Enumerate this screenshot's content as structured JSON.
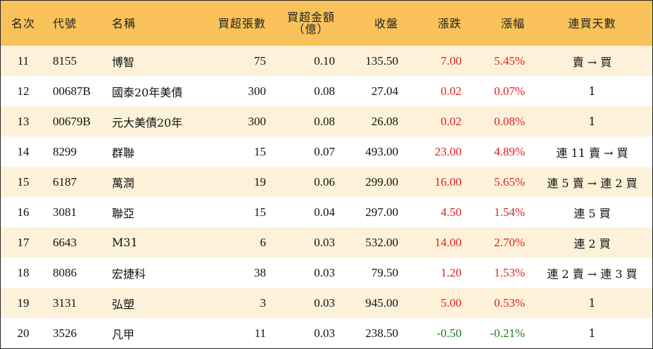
{
  "headers": {
    "rank": "名次",
    "code": "代號",
    "name": "名稱",
    "net_buy_lots": "買超張數",
    "net_buy_amount_line1": "買超金額",
    "net_buy_amount_line2": "（億）",
    "close": "收盤",
    "change": "漲跌",
    "change_pct": "漲幅",
    "consecutive_buy_days": "連買天數"
  },
  "colors": {
    "header_bg": "#f9c25a",
    "odd_row_bg": "#fdf2d9",
    "even_row_bg": "#ffffff",
    "up": "#e02020",
    "down": "#1f7a1f"
  },
  "rows": [
    {
      "rank": "11",
      "code": "8155",
      "name": "博智",
      "lots": "75",
      "amount": "0.10",
      "close": "135.50",
      "change": "7.00",
      "pct": "5.45%",
      "dir": "up",
      "streak": "賣 → 買"
    },
    {
      "rank": "12",
      "code": "00687B",
      "name": "國泰20年美債",
      "lots": "300",
      "amount": "0.08",
      "close": "27.04",
      "change": "0.02",
      "pct": "0.07%",
      "dir": "up",
      "streak": "1"
    },
    {
      "rank": "13",
      "code": "00679B",
      "name": "元大美債20年",
      "lots": "300",
      "amount": "0.08",
      "close": "26.08",
      "change": "0.02",
      "pct": "0.08%",
      "dir": "up",
      "streak": "1"
    },
    {
      "rank": "14",
      "code": "8299",
      "name": "群聯",
      "lots": "15",
      "amount": "0.07",
      "close": "493.00",
      "change": "23.00",
      "pct": "4.89%",
      "dir": "up",
      "streak": "連 11 賣 → 買"
    },
    {
      "rank": "15",
      "code": "6187",
      "name": "萬潤",
      "lots": "19",
      "amount": "0.06",
      "close": "299.00",
      "change": "16.00",
      "pct": "5.65%",
      "dir": "up",
      "streak": "連 5 賣 → 連 2 買"
    },
    {
      "rank": "16",
      "code": "3081",
      "name": "聯亞",
      "lots": "15",
      "amount": "0.04",
      "close": "297.00",
      "change": "4.50",
      "pct": "1.54%",
      "dir": "up",
      "streak": "連 5 買"
    },
    {
      "rank": "17",
      "code": "6643",
      "name": "M31",
      "lots": "6",
      "amount": "0.03",
      "close": "532.00",
      "change": "14.00",
      "pct": "2.70%",
      "dir": "up",
      "streak": "連 2 買"
    },
    {
      "rank": "18",
      "code": "8086",
      "name": "宏捷科",
      "lots": "38",
      "amount": "0.03",
      "close": "79.50",
      "change": "1.20",
      "pct": "1.53%",
      "dir": "up",
      "streak": "連 2 賣 → 連 3 買"
    },
    {
      "rank": "19",
      "code": "3131",
      "name": "弘塑",
      "lots": "3",
      "amount": "0.03",
      "close": "945.00",
      "change": "5.00",
      "pct": "0.53%",
      "dir": "up",
      "streak": "1"
    },
    {
      "rank": "20",
      "code": "3526",
      "name": "凡甲",
      "lots": "11",
      "amount": "0.03",
      "close": "238.50",
      "change": "-0.50",
      "pct": "-0.21%",
      "dir": "down",
      "streak": "1"
    }
  ]
}
